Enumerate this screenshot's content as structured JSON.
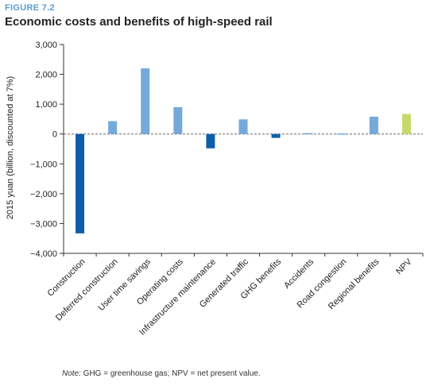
{
  "figure": {
    "label": "FIGURE 7.2",
    "title": "Economic costs and benefits of high-speed rail",
    "note_label": "Note:",
    "note_text": " GHG = greenhouse gas; NPV = net present value."
  },
  "colors": {
    "cost": "#0d5ea8",
    "benefit": "#74a9db",
    "npv": "#c9d86b",
    "axis": "#333333",
    "zero_line": "#666666"
  },
  "chart_data": {
    "type": "bar",
    "title": "",
    "xlabel": "",
    "ylabel": "2015 yuan (billion, discounted at 7%)",
    "ylim": [
      -4000,
      3000
    ],
    "yticks": [
      3000,
      2000,
      1000,
      0,
      -1000,
      -2000,
      -3000,
      -4000
    ],
    "ytick_labels": [
      "3,000",
      "2,000",
      "1,000",
      "0",
      "−1,000",
      "−2,000",
      "−3,000",
      "−4,000"
    ],
    "zero_line": "dashed",
    "grid": false,
    "categories": [
      "Construction",
      "Deferred construction",
      "User time savings",
      "Operating costs",
      "Infrastructure maintenance",
      "Generated traffic",
      "GHG benefits",
      "Accidents",
      "Road congestion",
      "Regional benefits",
      "NPV"
    ],
    "values": [
      -3330,
      430,
      2200,
      900,
      -480,
      490,
      -130,
      30,
      20,
      580,
      670
    ],
    "bar_kinds": [
      "cost",
      "benefit",
      "benefit",
      "benefit",
      "cost",
      "benefit",
      "cost",
      "benefit",
      "benefit",
      "benefit",
      "npv"
    ]
  }
}
